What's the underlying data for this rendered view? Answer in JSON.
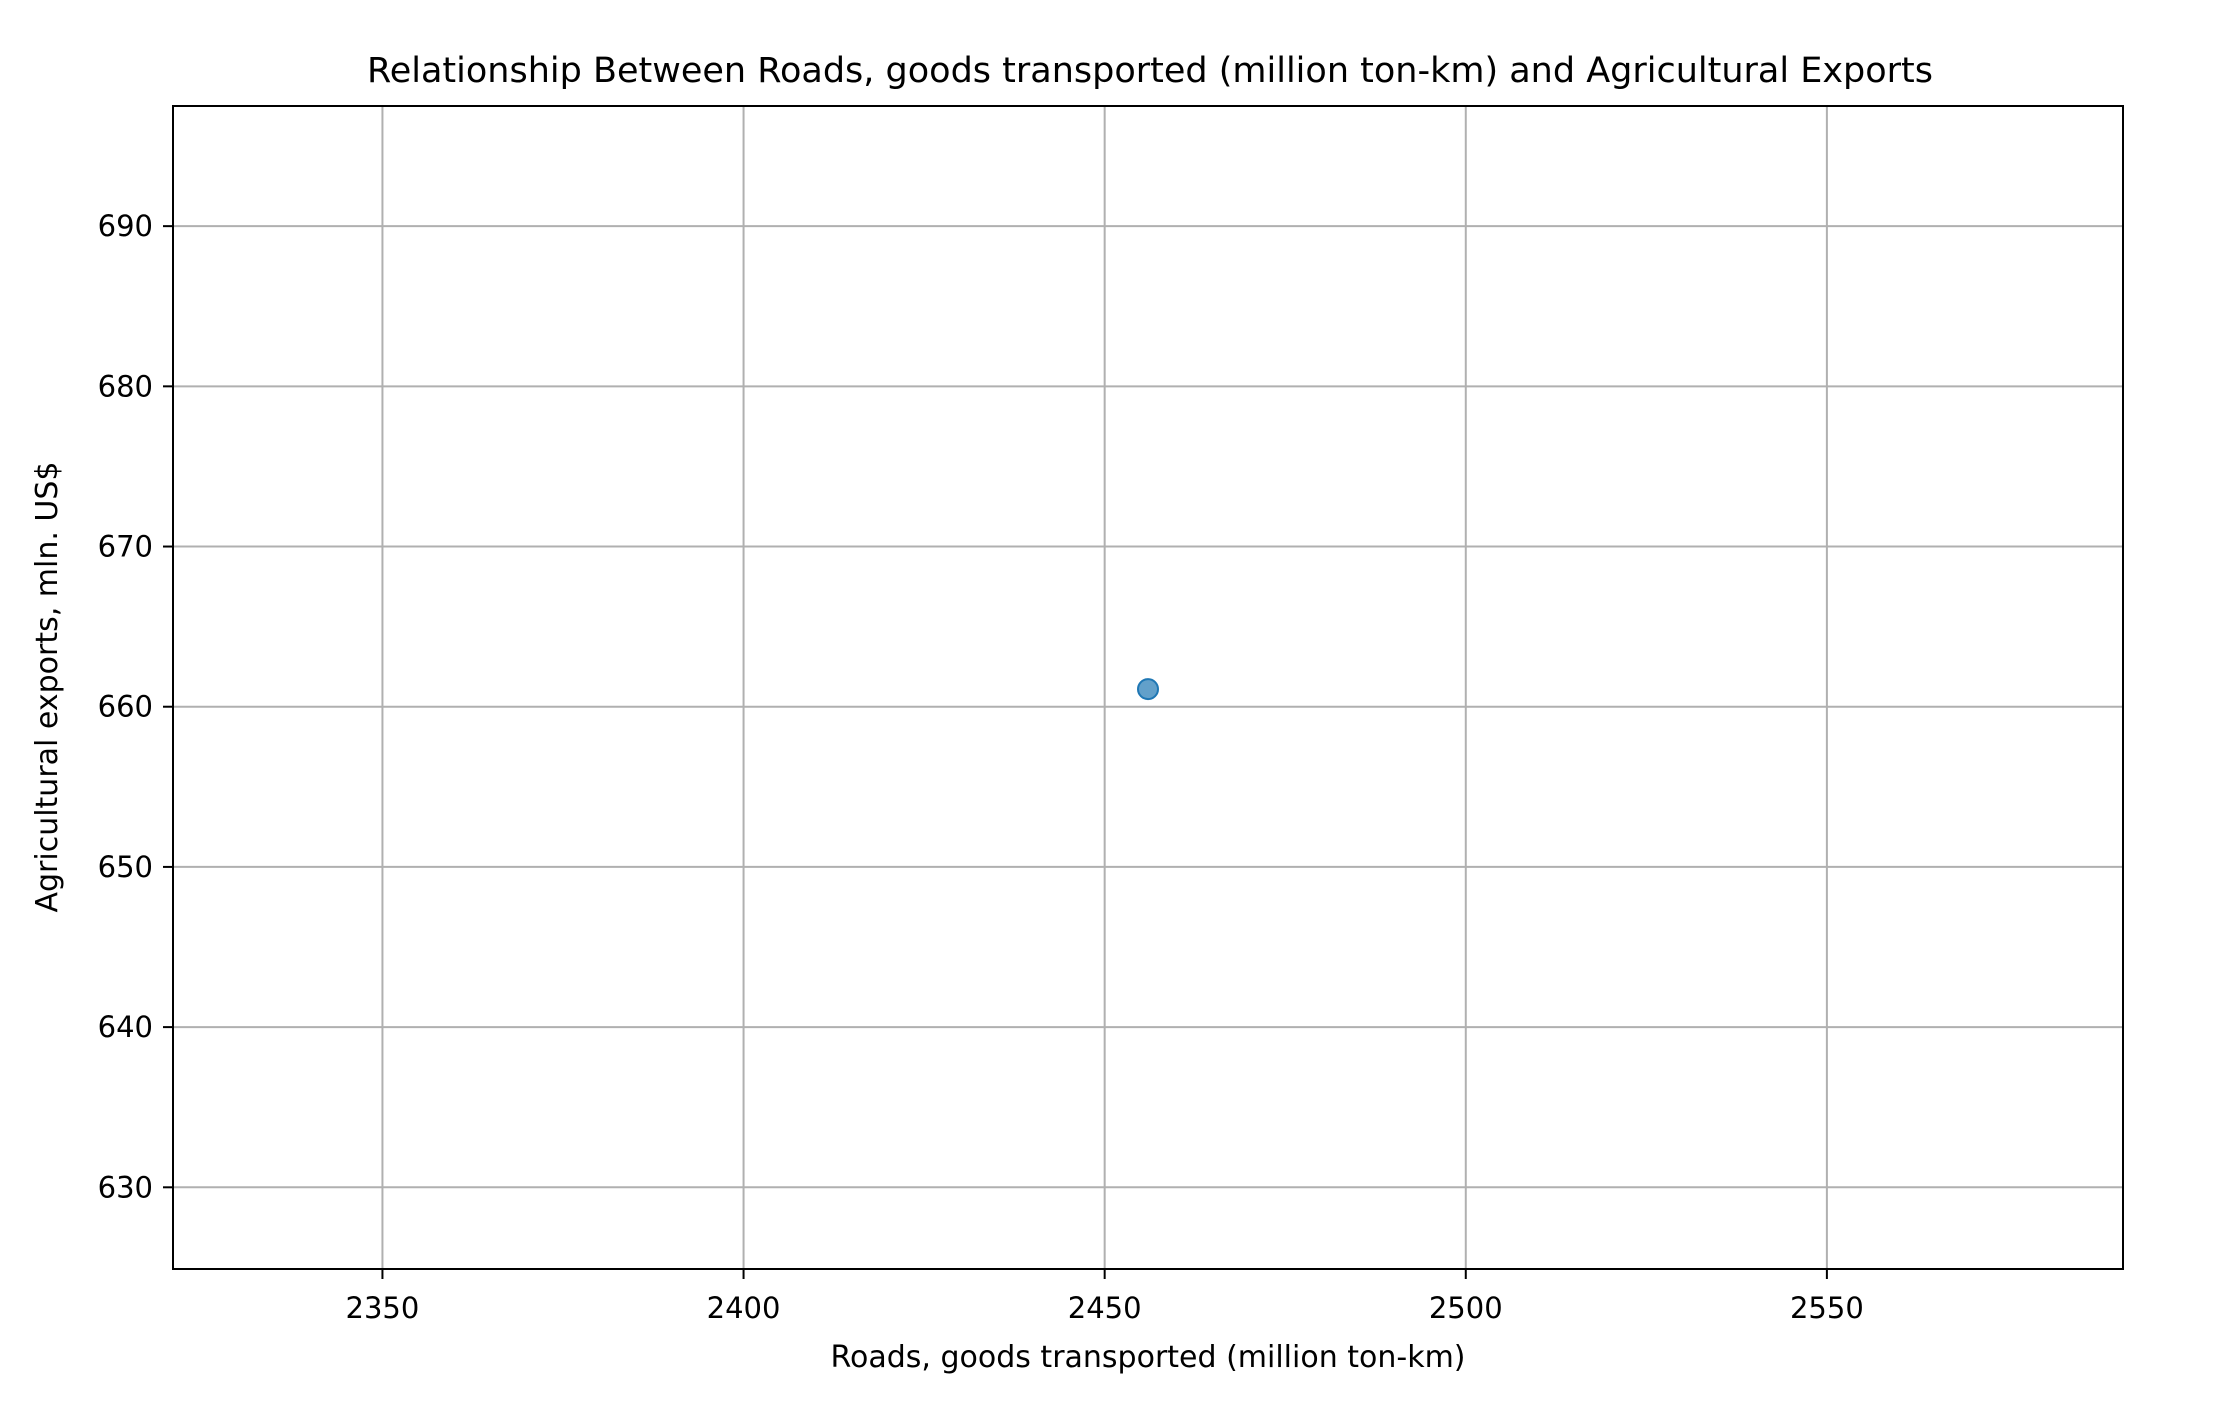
{
  "chart_data": {
    "type": "scatter",
    "title": "Relationship Between Roads, goods transported (million ton-km) and Agricultural Exports",
    "xlabel": "Roads, goods transported (million ton-km)",
    "ylabel": "Agricultural exports, mln. US$",
    "xlim": [
      2321,
      2591
    ],
    "ylim": [
      624.9,
      697.5
    ],
    "xticks": [
      2350,
      2400,
      2450,
      2500,
      2550
    ],
    "yticks": [
      630,
      640,
      650,
      660,
      670,
      680,
      690
    ],
    "grid": true,
    "legend": "none",
    "series": [
      {
        "color": "#1f77b4",
        "points": [
          {
            "x": 2456,
            "y": 661.1
          }
        ]
      }
    ]
  },
  "colors": {
    "point": "#1f77b4",
    "grid": "#b0b0b0",
    "axes": "#000000"
  }
}
